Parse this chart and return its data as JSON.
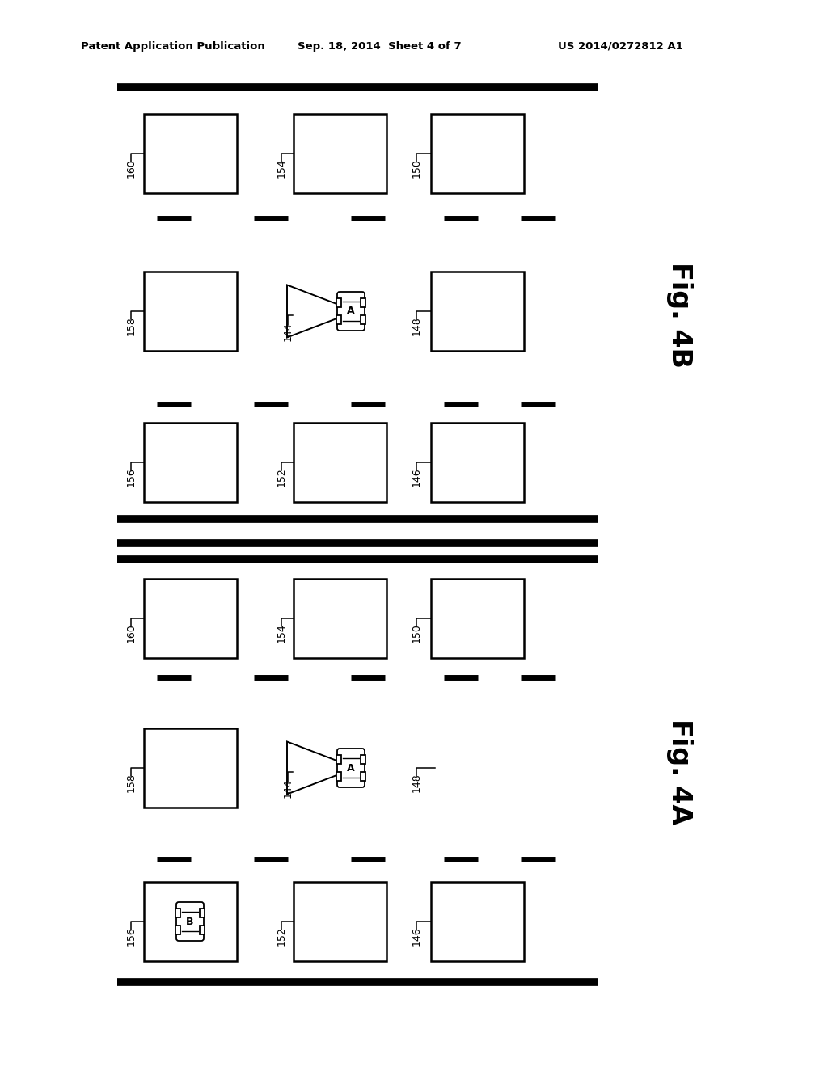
{
  "bg_color": "#ffffff",
  "header_text1": "Patent Application Publication",
  "header_text2": "Sep. 18, 2014  Sheet 4 of 7",
  "header_text3": "US 2014/0272812 A1",
  "fig4b_label": "Fig. 4B",
  "fig4a_label": "Fig. 4A"
}
